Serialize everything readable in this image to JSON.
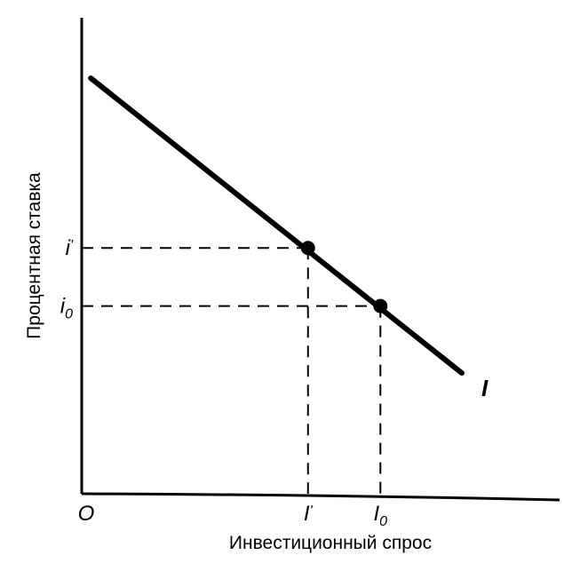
{
  "chart_data": {
    "type": "line",
    "xlabel": "Инвестиционный спрос",
    "ylabel": "Процентная ставка",
    "origin_label": "O",
    "grid": false,
    "series": [
      {
        "name": "I",
        "x": [
          0.1,
          4.2
        ],
        "y": [
          4.65,
          1.35
        ]
      }
    ],
    "points": [
      {
        "x_label": "I'",
        "y_label": "i'",
        "x": 2.5,
        "y": 2.75
      },
      {
        "x_label": "I₀",
        "y_label": "i₀",
        "x": 3.3,
        "y": 2.1
      }
    ],
    "x_ticks": [
      {
        "label": "I'",
        "value": 2.5,
        "base": "I",
        "sup": "'"
      },
      {
        "label": "I₀",
        "value": 3.3,
        "base": "I",
        "sub": "0"
      }
    ],
    "y_ticks": [
      {
        "label": "i'",
        "value": 2.75,
        "base": "i",
        "sup": "'"
      },
      {
        "label": "i₀",
        "value": 2.1,
        "base": "i",
        "sub": "0"
      }
    ],
    "xlim": [
      0,
      4.2
    ],
    "ylim": [
      0,
      4.65
    ]
  }
}
